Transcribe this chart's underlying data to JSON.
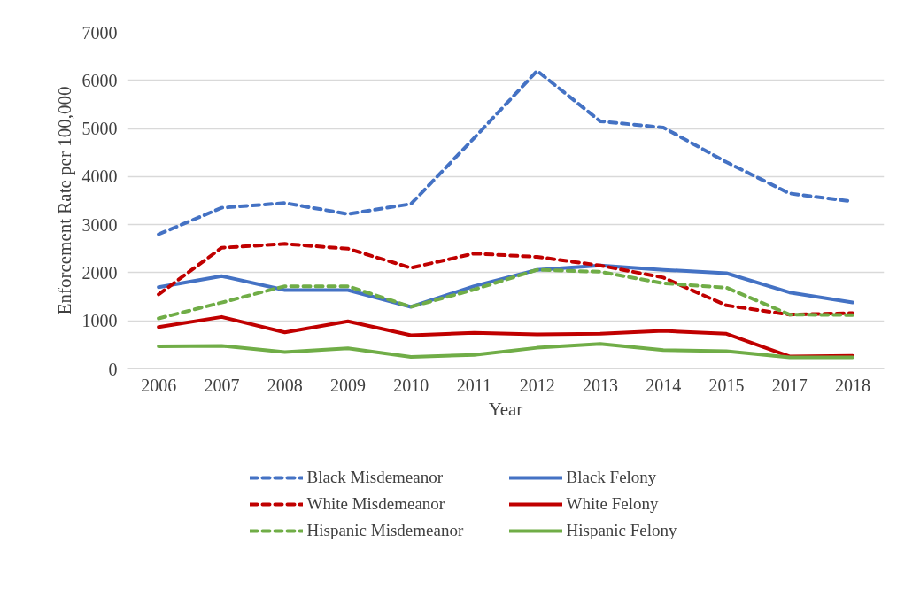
{
  "chart_data": {
    "type": "line",
    "xlabel": "Year",
    "ylabel": "Enforcement Rate per 100,000",
    "categories": [
      "2006",
      "2007",
      "2008",
      "2009",
      "2010",
      "2011",
      "2012",
      "2013",
      "2014",
      "2015",
      "2017",
      "2018"
    ],
    "ylim": [
      0,
      7000
    ],
    "yticks": [
      0,
      1000,
      2000,
      3000,
      4000,
      5000,
      6000,
      7000
    ],
    "grid": "y",
    "legend": "bottom",
    "marker": "none",
    "series": [
      {
        "name": "Black Misdemeanor",
        "color": "#4472c4",
        "line_style": "dashed",
        "values": [
          2800,
          3350,
          3450,
          3220,
          3430,
          4800,
          6200,
          5150,
          5020,
          4300,
          3650,
          3480
        ]
      },
      {
        "name": "Black Felony",
        "color": "#4472c4",
        "line_style": "solid",
        "values": [
          1700,
          1930,
          1640,
          1640,
          1290,
          1720,
          2060,
          2150,
          2060,
          1990,
          1590,
          1380
        ]
      },
      {
        "name": "White Misdemeanor",
        "color": "#c00000",
        "line_style": "dashed",
        "values": [
          1550,
          2520,
          2600,
          2500,
          2100,
          2400,
          2330,
          2150,
          1900,
          1320,
          1130,
          1160
        ]
      },
      {
        "name": "White Felony",
        "color": "#c00000",
        "line_style": "solid",
        "values": [
          870,
          1080,
          760,
          990,
          700,
          750,
          720,
          730,
          790,
          730,
          260,
          270
        ]
      },
      {
        "name": "Hispanic Misdemeanor",
        "color": "#70ad47",
        "line_style": "dashed",
        "values": [
          1050,
          1380,
          1720,
          1720,
          1290,
          1650,
          2060,
          2020,
          1780,
          1690,
          1130,
          1120
        ]
      },
      {
        "name": "Hispanic Felony",
        "color": "#70ad47",
        "line_style": "solid",
        "values": [
          470,
          480,
          350,
          430,
          250,
          290,
          440,
          520,
          390,
          370,
          240,
          240
        ]
      }
    ]
  }
}
